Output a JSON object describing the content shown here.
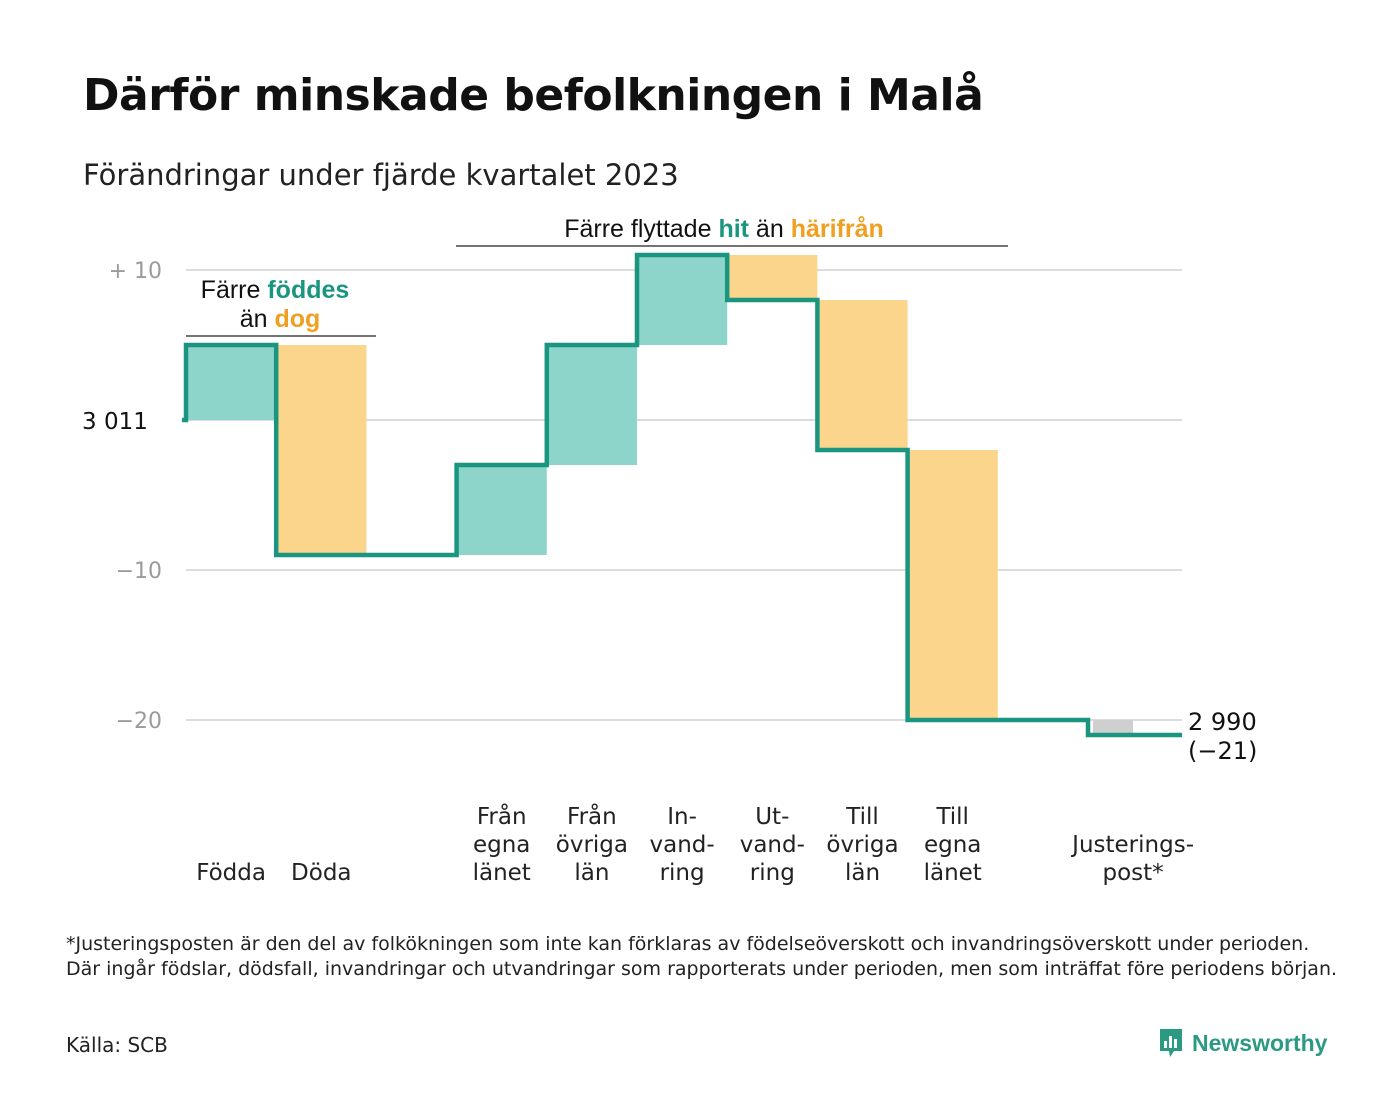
{
  "title": "Därför minskade befolkningen i Malå",
  "subtitle": "Förändringar under fjärde kvartalet 2023",
  "chart_data": {
    "type": "waterfall",
    "start_value_label": "3  011",
    "end_value_label": "2 990",
    "end_change_label": "(−21)",
    "ylim": [
      -23,
      11
    ],
    "y_ticks": [
      {
        "value": 10,
        "label": "+  10"
      },
      {
        "value": 0,
        "label": ""
      },
      {
        "value": -10,
        "label": "−10"
      },
      {
        "value": -20,
        "label": "−20"
      }
    ],
    "grid": true,
    "steps": [
      {
        "label": [
          "Födda"
        ],
        "value": 5,
        "kind": "in"
      },
      {
        "label": [
          "Döda"
        ],
        "value": -14,
        "kind": "out"
      },
      {
        "label": [
          "Från",
          "egna",
          "länet"
        ],
        "value": 6,
        "kind": "in"
      },
      {
        "label": [
          "Från",
          "övriga",
          "län"
        ],
        "value": 8,
        "kind": "in"
      },
      {
        "label": [
          "In-",
          "vand-",
          "ring"
        ],
        "value": 6,
        "kind": "in"
      },
      {
        "label": [
          "Ut-",
          "vand-",
          "ring"
        ],
        "value": -3,
        "kind": "out"
      },
      {
        "label": [
          "Till",
          "övriga",
          "län"
        ],
        "value": -10,
        "kind": "out"
      },
      {
        "label": [
          "Till",
          "egna",
          "länet"
        ],
        "value": -18,
        "kind": "out"
      },
      {
        "label": [
          "Justerings-",
          "post*"
        ],
        "value": -1,
        "kind": "adj"
      }
    ],
    "annotations": [
      {
        "parts": [
          {
            "text": "Färre ",
            "kind": "plain"
          },
          {
            "text": "föddes",
            "kind": "in"
          }
        ],
        "parts2": [
          {
            "text": "än ",
            "kind": "plain"
          },
          {
            "text": "dog",
            "kind": "out"
          }
        ]
      },
      {
        "parts": [
          {
            "text": "Färre flyttade ",
            "kind": "plain"
          },
          {
            "text": "hit",
            "kind": "in"
          },
          {
            "text": " än ",
            "kind": "plain"
          },
          {
            "text": "härifrån",
            "kind": "out"
          }
        ]
      }
    ],
    "colors": {
      "in_fill": "#8dd5cb",
      "out_fill": "#fbd58b",
      "adj_fill": "#cfcfcf",
      "line": "#1a9680",
      "in_text": "#1a9680",
      "out_text": "#f0a020",
      "grid": "#dcdcdc",
      "tick_text": "#9a9a9a"
    }
  },
  "footnote": "*Justeringsposten är den del av folkökningen som inte kan förklaras av födelseöverskott och invandringsöverskott under perioden. Där ingår födslar, dödsfall, invandringar och utvandringar som rapporterats under perioden, men som inträffat före periodens början.",
  "source": "Källa: SCB",
  "brand": {
    "name": "Newsworthy",
    "icon": "newsworthy-logo-icon",
    "color": "#2a9a82"
  }
}
